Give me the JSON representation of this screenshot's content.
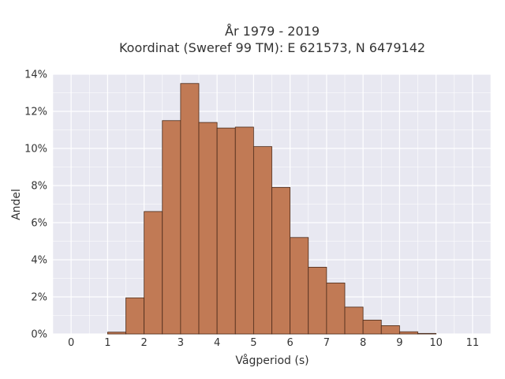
{
  "chart_data": {
    "type": "bar",
    "title_line1": "År 1979 - 2019",
    "title_line2": "Koordinat (Sweref 99 TM): E 621573, N 6479142",
    "xlabel": "Vågperiod (s)",
    "ylabel": "Andel",
    "xlim": [
      -0.5,
      11.5
    ],
    "ylim": [
      0,
      14
    ],
    "x_ticks": [
      "0",
      "1",
      "2",
      "3",
      "4",
      "5",
      "6",
      "7",
      "8",
      "9",
      "10",
      "11"
    ],
    "y_ticks": [
      "0%",
      "2%",
      "4%",
      "6%",
      "8%",
      "10%",
      "12%",
      "14%"
    ],
    "bin_width": 0.5,
    "bins": [
      {
        "start": 1.0,
        "value": 0.1
      },
      {
        "start": 1.5,
        "value": 1.95
      },
      {
        "start": 2.0,
        "value": 6.6
      },
      {
        "start": 2.5,
        "value": 11.5
      },
      {
        "start": 3.0,
        "value": 13.5
      },
      {
        "start": 3.5,
        "value": 11.4
      },
      {
        "start": 4.0,
        "value": 11.1
      },
      {
        "start": 4.5,
        "value": 11.15
      },
      {
        "start": 5.0,
        "value": 10.1
      },
      {
        "start": 5.5,
        "value": 7.9
      },
      {
        "start": 6.0,
        "value": 5.2
      },
      {
        "start": 6.5,
        "value": 3.6
      },
      {
        "start": 7.0,
        "value": 2.75
      },
      {
        "start": 7.5,
        "value": 1.45
      },
      {
        "start": 8.0,
        "value": 0.75
      },
      {
        "start": 8.5,
        "value": 0.45
      },
      {
        "start": 9.0,
        "value": 0.12
      },
      {
        "start": 9.5,
        "value": 0.03
      }
    ],
    "colors": {
      "bar_fill": "#C17A55",
      "bar_stroke": "#4A2A1A",
      "plot_bg": "#E8E8F1",
      "grid": "#FFFFFF"
    },
    "grid": true
  }
}
